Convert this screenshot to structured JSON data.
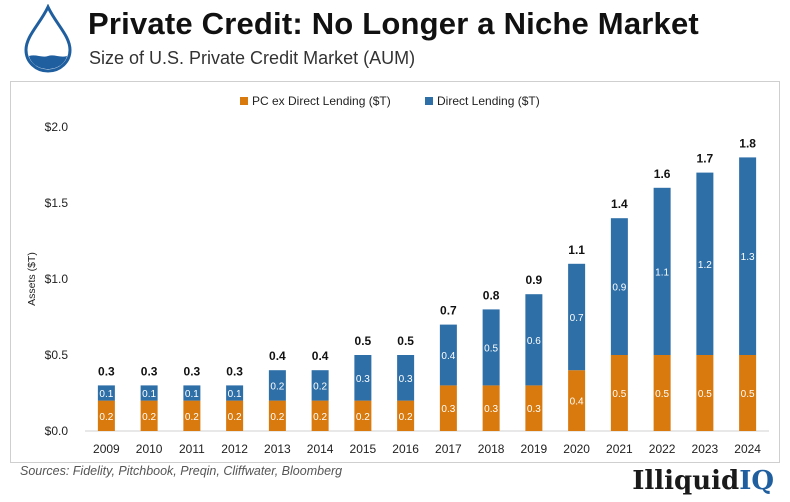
{
  "header": {
    "title": "Private Credit: No Longer a Niche Market",
    "subtitle": "Size of U.S. Private Credit Market (AUM)",
    "icon": "water-drop-icon"
  },
  "footer": {
    "sources": "Sources:  Fidelity, Pitchbook, Preqin, Cliffwater, Bloomberg",
    "brand_part1": "Illiquid",
    "brand_part2": "IQ"
  },
  "colors": {
    "pc_ex_dl": "#d97a0e",
    "direct_lending": "#2e6fa8",
    "brand_blue": "#1f5f9f"
  },
  "chart_data": {
    "type": "bar",
    "stacked": true,
    "categories": [
      "2009",
      "2010",
      "2011",
      "2012",
      "2013",
      "2014",
      "2015",
      "2016",
      "2017",
      "2018",
      "2019",
      "2020",
      "2021",
      "2022",
      "2023",
      "2024"
    ],
    "series": [
      {
        "name": "PC ex Direct Lending ($T)",
        "color": "#d97a0e",
        "values": [
          0.2,
          0.2,
          0.2,
          0.2,
          0.2,
          0.2,
          0.2,
          0.2,
          0.3,
          0.3,
          0.3,
          0.4,
          0.5,
          0.5,
          0.5,
          0.5
        ]
      },
      {
        "name": "Direct Lending ($T)",
        "color": "#2e6fa8",
        "values": [
          0.1,
          0.1,
          0.1,
          0.1,
          0.2,
          0.2,
          0.3,
          0.3,
          0.4,
          0.5,
          0.6,
          0.7,
          0.9,
          1.1,
          1.2,
          1.3
        ]
      }
    ],
    "totals": [
      0.3,
      0.3,
      0.3,
      0.3,
      0.4,
      0.4,
      0.5,
      0.5,
      0.7,
      0.8,
      0.9,
      1.1,
      1.4,
      1.6,
      1.7,
      1.8
    ],
    "ylabel": "Assets ($T)",
    "xlabel": "",
    "ylim": [
      0,
      2.0
    ],
    "yticks": [
      0,
      0.5,
      1.0,
      1.5,
      2.0
    ],
    "ytick_labels": [
      "$0.0",
      "$0.5",
      "$1.0",
      "$1.5",
      "$2.0"
    ],
    "legend_position": "top-center",
    "grid": false
  }
}
